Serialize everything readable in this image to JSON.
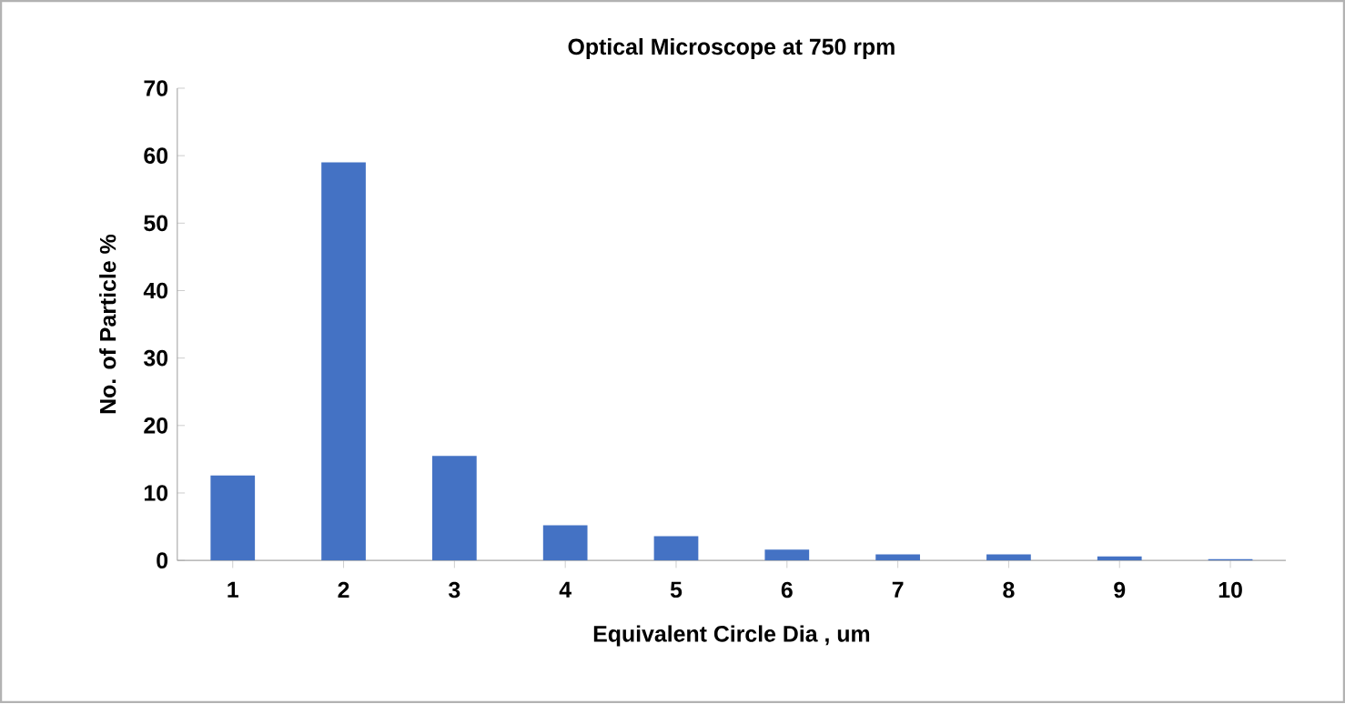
{
  "chart_data": {
    "type": "bar",
    "title": "Optical Microscope at 750 rpm",
    "xlabel": "Equivalent Circle Dia , um",
    "ylabel": "No. of Particle %",
    "categories": [
      "1",
      "2",
      "3",
      "4",
      "5",
      "6",
      "7",
      "8",
      "9",
      "10"
    ],
    "values": [
      12.6,
      59.0,
      15.5,
      5.2,
      3.6,
      1.6,
      0.9,
      0.9,
      0.6,
      0.2
    ],
    "color": "#4472c4",
    "ylim": [
      0,
      70
    ],
    "yticks": [
      0,
      10,
      20,
      30,
      40,
      50,
      60,
      70
    ],
    "grid": false
  }
}
